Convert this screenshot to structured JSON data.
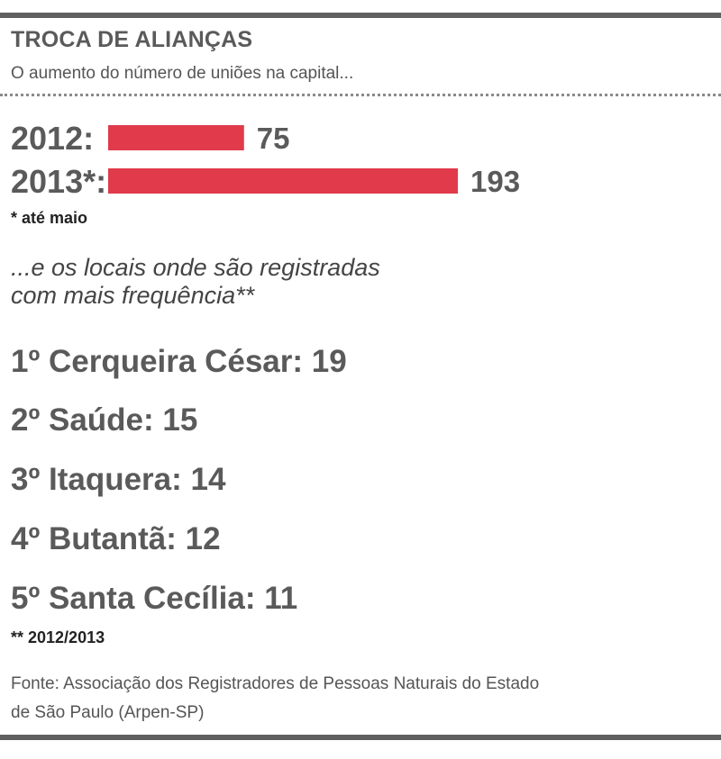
{
  "header": {
    "title": "TROCA DE ALIANÇAS",
    "subtitle": "O aumento do número de uniões na capital..."
  },
  "chart_data": {
    "type": "bar",
    "orientation": "horizontal",
    "categories": [
      "2012:",
      "2013*:"
    ],
    "values": [
      75,
      193
    ],
    "bar_color": "#e03a4b",
    "title": "",
    "xlabel": "",
    "ylabel": ""
  },
  "notes": {
    "footnote1": "* até maio",
    "footnote2": "** 2012/2013"
  },
  "ranking": {
    "intro_line1": "...e os locais onde são registradas",
    "intro_line2": "com mais frequência**",
    "items": [
      {
        "text": "1º Cerqueira César: 19"
      },
      {
        "text": "2º Saúde: 15"
      },
      {
        "text": "3º Itaquera: 14"
      },
      {
        "text": "4º Butantã: 12"
      },
      {
        "text": "5º Santa Cecília: 11"
      }
    ]
  },
  "source": {
    "line1": "Fonte: Associação dos Registradores de Pessoas Naturais do Estado",
    "line2": "de São Paulo (Arpen-SP)"
  }
}
